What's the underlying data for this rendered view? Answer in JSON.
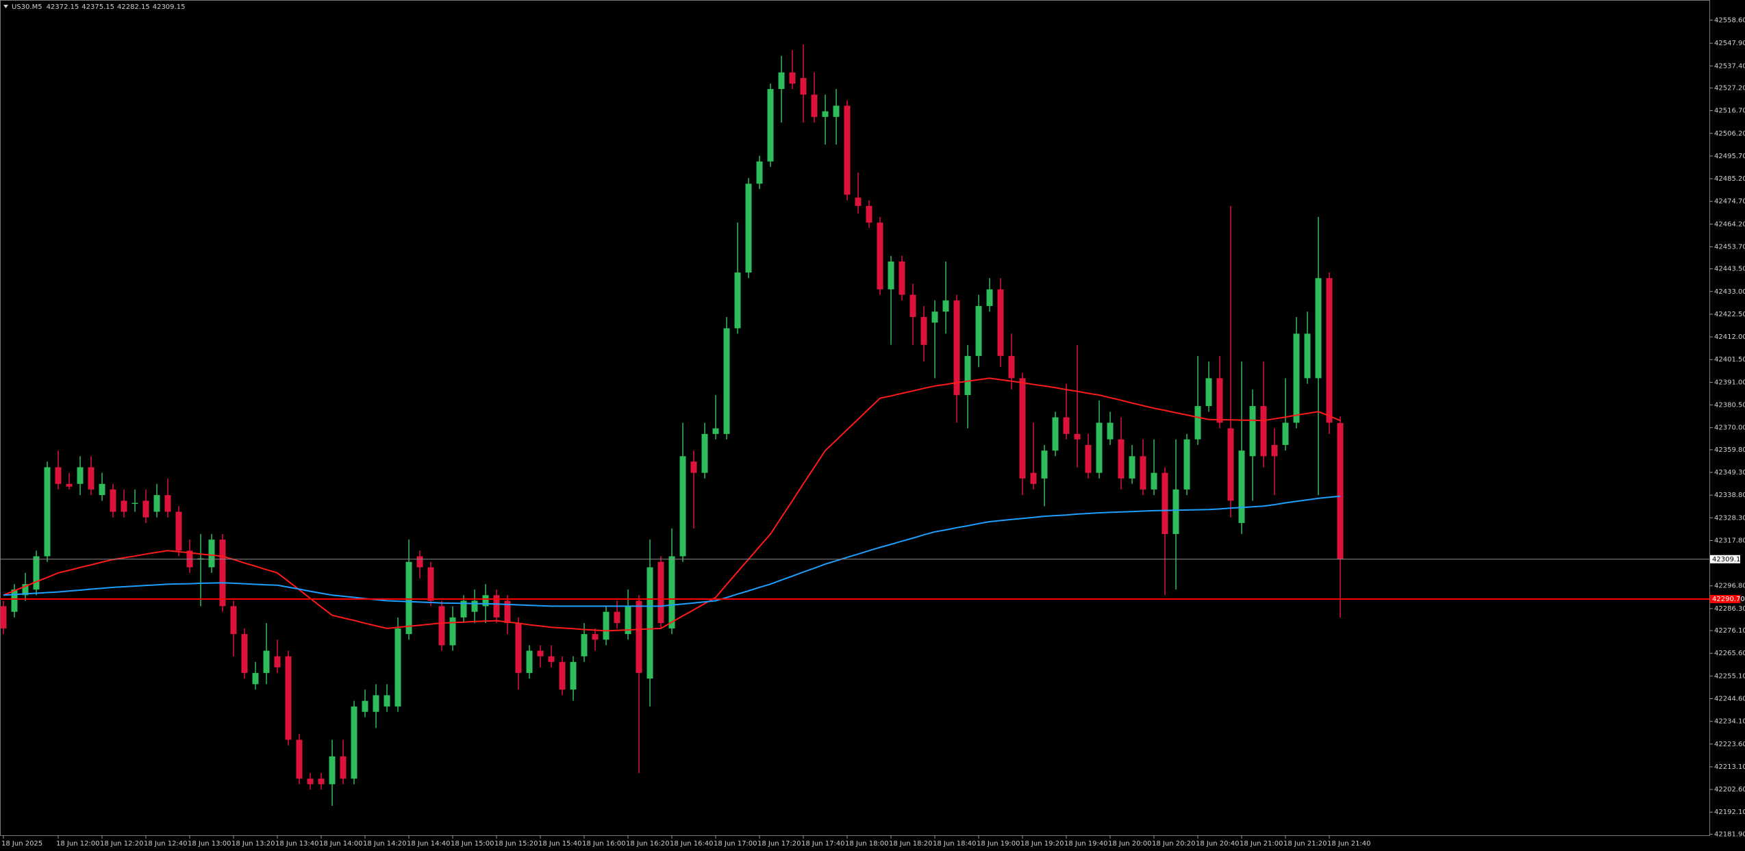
{
  "chart_data": {
    "type": "candlestick",
    "symbol": "US30.M5",
    "categories": [
      "18 Jun 2025",
      null,
      null,
      null,
      null,
      "18 Jun 12:00",
      null,
      null,
      null,
      "18 Jun 12:20",
      null,
      null,
      null,
      "18 Jun 12:40",
      null,
      null,
      null,
      "18 Jun 13:00",
      null,
      null,
      null,
      "18 Jun 13:20",
      null,
      null,
      null,
      "18 Jun 13:40",
      null,
      null,
      null,
      "18 Jun 14:00",
      null,
      null,
      null,
      "18 Jun 14:20",
      null,
      null,
      null,
      "18 Jun 14:40",
      null,
      null,
      null,
      "18 Jun 15:00",
      null,
      null,
      null,
      "18 Jun 15:20",
      null,
      null,
      null,
      "18 Jun 15:40",
      null,
      null,
      null,
      "18 Jun 16:00",
      null,
      null,
      null,
      "18 Jun 16:20",
      null,
      null,
      null,
      "18 Jun 16:40",
      null,
      null,
      null,
      "18 Jun 17:00",
      null,
      null,
      null,
      "18 Jun 17:20",
      null,
      null,
      null,
      "18 Jun 17:40",
      null,
      null,
      null,
      "18 Jun 18:00",
      null,
      null,
      null,
      "18 Jun 18:20",
      null,
      null,
      null,
      "18 Jun 18:40",
      null,
      null,
      null,
      "18 Jun 19:00",
      null,
      null,
      null,
      "18 Jun 19:20",
      null,
      null,
      null,
      "18 Jun 19:40",
      null,
      null,
      null,
      "18 Jun 20:00",
      null,
      null,
      null,
      "18 Jun 20:20",
      null,
      null,
      null,
      "18 Jun 20:40",
      null,
      null,
      null,
      "18 Jun 21:00",
      null,
      null,
      null,
      "18 Jun 21:20",
      null,
      null,
      null,
      "18 Jun 21:40",
      null
    ],
    "open": [
      42287.4,
      42284.8,
      42292.5,
      42295.1,
      42310.5,
      42351.7,
      42344.0,
      42344.0,
      42351.7,
      42338.8,
      42341.4,
      42336.2,
      42335.0,
      42336.2,
      42331.1,
      42338.8,
      42331.1,
      42313.1,
      42309.0,
      42305.4,
      42318.2,
      42287.4,
      42274.5,
      42251.3,
      42256.5,
      42264.2,
      42264.2,
      42225.6,
      42207.6,
      42207.6,
      42205.0,
      42217.9,
      42207.6,
      42238.5,
      42238.5,
      42241.0,
      42241.0,
      42274.5,
      42310.5,
      42305.4,
      42287.4,
      42269.3,
      42282.2,
      42284.8,
      42287.4,
      42292.5,
      42289.9,
      42279.6,
      42256.5,
      42266.8,
      42264.2,
      42261.6,
      42248.8,
      42264.2,
      42274.5,
      42271.9,
      42284.8,
      42274.5,
      42289.9,
      42253.9,
      42307.9,
      42277.1,
      42310.5,
      42354.3,
      42349.1,
      42367.1,
      42367.1,
      42416.0,
      42441.8,
      42482.9,
      42493.2,
      42526.7,
      42534.4,
      42531.8,
      42524.1,
      42513.8,
      42513.8,
      42519.0,
      42476.5,
      42472.6,
      42464.9,
      42434.0,
      42446.9,
      42431.5,
      42421.2,
      42418.6,
      42423.7,
      42428.9,
      42385.1,
      42403.2,
      42426.3,
      42434.0,
      42403.2,
      42392.9,
      42349.1,
      42346.5,
      42359.4,
      42374.8,
      42367.1,
      42362.0,
      42349.1,
      42364.6,
      42364.6,
      42346.5,
      42356.8,
      42341.4,
      42349.1,
      42320.8,
      42341.4,
      42364.6,
      42380.0,
      42392.9,
      42369.7,
      42325.9,
      42356.8,
      42380.0,
      42362.0,
      42362.0,
      42372.3,
      42392.9,
      42392.9,
      42439.2,
      42372.15
    ],
    "high": [
      42289.9,
      42297.6,
      42302.8,
      42313.1,
      42354.3,
      42359.4,
      42349.1,
      42356.8,
      42356.8,
      42349.1,
      42344.0,
      42341.4,
      42341.4,
      42341.4,
      42344.0,
      42346.5,
      42333.7,
      42318.2,
      42320.8,
      42320.8,
      42320.8,
      42289.9,
      42277.1,
      42261.6,
      42279.6,
      42271.9,
      42266.8,
      42228.2,
      42210.2,
      42210.2,
      42225.6,
      42225.6,
      42243.6,
      42248.8,
      42251.3,
      42251.3,
      42282.2,
      42318.2,
      42313.1,
      42307.9,
      42289.9,
      42287.4,
      42292.5,
      42295.1,
      42297.6,
      42295.1,
      42292.5,
      42282.2,
      42269.3,
      42269.3,
      42269.3,
      42264.2,
      42264.2,
      42279.6,
      42277.1,
      42287.4,
      42289.9,
      42295.1,
      42292.5,
      42318.2,
      42310.5,
      42323.4,
      42372.3,
      42359.4,
      42372.3,
      42385.1,
      42421.2,
      42464.9,
      42485.5,
      42495.8,
      42529.2,
      42542.1,
      42544.7,
      42547.3,
      42534.4,
      42524.1,
      42526.7,
      42521.5,
      42488.1,
      42475.2,
      42467.5,
      42449.5,
      42449.5,
      42436.6,
      42426.3,
      42428.9,
      42446.9,
      42431.5,
      42408.3,
      42431.5,
      42439.2,
      42439.2,
      42413.5,
      42395.4,
      42372.3,
      42362.0,
      42377.4,
      42390.3,
      42408.3,
      42367.1,
      42382.6,
      42377.4,
      42374.8,
      42362.0,
      42364.6,
      42364.6,
      42351.7,
      42364.6,
      42367.1,
      42403.2,
      42400.6,
      42403.2,
      42472.6,
      42400.6,
      42387.7,
      42400.6,
      42369.7,
      42392.9,
      42421.2,
      42423.7,
      42467.5,
      42441.8,
      42375.15
    ],
    "low": [
      42274.5,
      42282.2,
      42289.9,
      42292.5,
      42307.9,
      42341.4,
      42341.4,
      42338.8,
      42338.8,
      42336.2,
      42328.5,
      42328.5,
      42331.1,
      42325.9,
      42328.5,
      42328.5,
      42310.5,
      42302.8,
      42287.4,
      42302.8,
      42284.8,
      42264.2,
      42253.9,
      42248.8,
      42251.3,
      42256.5,
      42223.0,
      42205.0,
      42202.5,
      42202.5,
      42195.0,
      42205.0,
      42205.0,
      42236.0,
      42231.0,
      42238.5,
      42238.5,
      42271.9,
      42300.2,
      42287.4,
      42266.8,
      42266.8,
      42279.6,
      42279.6,
      42279.6,
      42279.6,
      42274.5,
      42248.8,
      42253.9,
      42259.1,
      42259.1,
      42246.2,
      42243.6,
      42261.6,
      42266.8,
      42269.3,
      42277.1,
      42271.9,
      42210.2,
      42241.0,
      42277.1,
      42274.5,
      42307.9,
      42323.4,
      42346.5,
      42364.6,
      42364.6,
      42413.5,
      42439.2,
      42480.4,
      42490.7,
      42511.2,
      42526.7,
      42511.2,
      42511.2,
      42501.0,
      42501.0,
      42475.2,
      42469.1,
      42462.4,
      42431.5,
      42408.3,
      42428.9,
      42408.3,
      42400.6,
      42392.9,
      42413.5,
      42372.3,
      42369.7,
      42398.0,
      42423.7,
      42398.0,
      42387.7,
      42338.8,
      42341.4,
      42333.7,
      42356.8,
      42364.6,
      42351.7,
      42346.5,
      42346.5,
      42362.0,
      42341.4,
      42344.0,
      42338.8,
      42338.8,
      42292.5,
      42295.1,
      42338.8,
      42362.0,
      42377.4,
      42369.7,
      42328.5,
      42320.8,
      42336.2,
      42351.7,
      42338.8,
      42359.4,
      42369.7,
      42390.3,
      42338.8,
      42367.1,
      42282.15
    ],
    "close": [
      42277.1,
      42295.1,
      42297.6,
      42310.5,
      42351.7,
      42344.0,
      42342.7,
      42351.7,
      42341.4,
      42344.0,
      42331.1,
      42331.1,
      42335.2,
      42328.5,
      42338.8,
      42331.1,
      42313.1,
      42305.4,
      42309.5,
      42318.2,
      42287.4,
      42274.5,
      42256.5,
      42256.5,
      42266.8,
      42259.1,
      42225.6,
      42207.6,
      42205.0,
      42205.0,
      42217.9,
      42207.6,
      42241.0,
      42243.6,
      42246.2,
      42246.2,
      42277.1,
      42307.9,
      42305.4,
      42289.9,
      42269.3,
      42282.2,
      42289.9,
      42289.9,
      42292.5,
      42282.2,
      42279.6,
      42256.5,
      42266.8,
      42264.2,
      42261.6,
      42248.8,
      42261.6,
      42274.5,
      42271.9,
      42284.8,
      42279.6,
      42287.4,
      42256.5,
      42305.4,
      42279.6,
      42310.5,
      42356.8,
      42349.1,
      42367.1,
      42369.7,
      42416.0,
      42441.8,
      42482.9,
      42493.2,
      42526.7,
      42534.4,
      42529.2,
      42524.1,
      42513.8,
      42516.4,
      42519.0,
      42477.8,
      42472.6,
      42464.9,
      42434.0,
      42446.9,
      42431.5,
      42421.2,
      42408.3,
      42423.7,
      42428.9,
      42385.1,
      42403.2,
      42426.3,
      42434.0,
      42403.2,
      42392.9,
      42346.5,
      42344.0,
      42359.4,
      42374.8,
      42367.1,
      42364.6,
      42349.1,
      42372.3,
      42372.3,
      42346.5,
      42356.8,
      42341.4,
      42349.1,
      42320.8,
      42341.4,
      42364.6,
      42380.0,
      42392.9,
      42372.3,
      42336.2,
      42359.4,
      42380.0,
      42356.8,
      42356.8,
      42372.3,
      42413.5,
      42413.5,
      42439.2,
      42372.3,
      42309.15
    ],
    "up_color": "#2ebd5c",
    "down_color": "#dc143c",
    "lines": [
      {
        "color": "#ff1a1a",
        "values": [
          42292.5,
          42294.6,
          42296.6,
          42298.7,
          42300.7,
          42302.8,
          42304.0,
          42305.3,
          42306.5,
          42307.8,
          42309.0,
          42309.8,
          42310.6,
          42311.5,
          42312.3,
          42313.1,
          42312.6,
          42312.1,
          42311.5,
          42311.0,
          42310.5,
          42309.0,
          42307.4,
          42305.9,
          42304.3,
          42302.8,
          42298.9,
          42295.0,
          42291.0,
          42287.1,
          42283.2,
          42282.0,
          42280.8,
          42279.5,
          42278.3,
          42277.1,
          42277.6,
          42278.1,
          42278.6,
          42279.1,
          42279.6,
          42279.8,
          42280.0,
          42280.3,
          42280.5,
          42280.7,
          42280.1,
          42279.5,
          42278.8,
          42278.2,
          42277.6,
          42277.3,
          42277.0,
          42276.6,
          42276.3,
          42276.0,
          42276.2,
          42276.4,
          42276.7,
          42276.9,
          42277.1,
          42280.0,
          42282.9,
          42285.7,
          42288.6,
          42291.5,
          42297.4,
          42303.3,
          42309.1,
          42315.0,
          42320.8,
          42328.5,
          42336.2,
          42344.0,
          42351.7,
          42359.4,
          42364.2,
          42369.1,
          42373.9,
          42378.8,
          42383.6,
          42384.7,
          42385.9,
          42387.0,
          42388.2,
          42389.3,
          42390.0,
          42390.8,
          42391.5,
          42392.2,
          42392.9,
          42392.2,
          42391.5,
          42390.8,
          42390.0,
          42389.3,
          42388.5,
          42387.6,
          42386.8,
          42385.9,
          42385.1,
          42383.9,
          42382.7,
          42381.4,
          42380.2,
          42379.0,
          42378.0,
          42376.9,
          42375.9,
          42374.8,
          42373.8,
          42373.7,
          42373.6,
          42373.5,
          42373.4,
          42373.3,
          42374.1,
          42374.9,
          42375.8,
          42376.6,
          42377.4,
          42375.4,
          42373.3
        ]
      },
      {
        "color": "#1e9fff",
        "values": [
          42292.5,
          42292.8,
          42293.1,
          42293.4,
          42293.7,
          42294.0,
          42294.4,
          42294.8,
          42295.3,
          42295.7,
          42296.1,
          42296.4,
          42296.7,
          42297.0,
          42297.3,
          42297.6,
          42297.7,
          42297.8,
          42298.0,
          42298.1,
          42298.2,
          42298.0,
          42297.8,
          42297.5,
          42297.3,
          42297.1,
          42296.2,
          42295.3,
          42294.3,
          42293.4,
          42292.5,
          42292.0,
          42291.5,
          42290.9,
          42290.4,
          42289.9,
          42289.7,
          42289.5,
          42289.3,
          42289.1,
          42288.9,
          42288.8,
          42288.7,
          42288.6,
          42288.5,
          42288.4,
          42288.2,
          42288.0,
          42287.8,
          42287.6,
          42287.4,
          42287.4,
          42287.4,
          42287.4,
          42287.4,
          42287.4,
          42287.4,
          42287.4,
          42287.4,
          42287.4,
          42287.4,
          42287.9,
          42288.4,
          42288.9,
          42289.4,
          42289.9,
          42291.4,
          42293.0,
          42294.5,
          42296.1,
          42297.6,
          42299.5,
          42301.3,
          42303.2,
          42305.0,
          42306.9,
          42308.4,
          42310.0,
          42311.5,
          42313.1,
          42314.6,
          42316.0,
          42317.5,
          42318.9,
          42320.4,
          42321.8,
          42322.7,
          42323.7,
          42324.6,
          42325.6,
          42326.5,
          42327.0,
          42327.5,
          42328.0,
          42328.5,
          42329.0,
          42329.3,
          42329.6,
          42330.0,
          42330.3,
          42330.6,
          42330.8,
          42331.0,
          42331.2,
          42331.4,
          42331.6,
          42331.7,
          42331.8,
          42331.9,
          42332.0,
          42332.1,
          42332.4,
          42332.8,
          42333.1,
          42333.4,
          42333.7,
          42334.4,
          42335.2,
          42335.9,
          42336.6,
          42337.3,
          42337.8,
          42338.3
        ]
      }
    ],
    "price_lines": [
      {
        "value": 42309.15,
        "label": "42309.15",
        "color": "#8c8c8c",
        "box": "#ffffff",
        "text_color": "#000000"
      },
      {
        "value": 42290.7,
        "label": "42290.70",
        "color": "#ff0000",
        "box": "#ff0000",
        "text_color": "#ffffff"
      }
    ],
    "ylim": [
      42181.4,
      42567.9
    ],
    "yticks": [
      {
        "value": 42558.6,
        "label": "42558.60"
      },
      {
        "value": 42547.9,
        "label": "42547.90"
      },
      {
        "value": 42537.4,
        "label": "42537.40"
      },
      {
        "value": 42527.2,
        "label": "42527.20"
      },
      {
        "value": 42516.7,
        "label": "42516.70"
      },
      {
        "value": 42506.2,
        "label": "42506.20"
      },
      {
        "value": 42495.7,
        "label": "42495.70"
      },
      {
        "value": 42485.2,
        "label": "42485.20"
      },
      {
        "value": 42474.7,
        "label": "42474.70"
      },
      {
        "value": 42464.2,
        "label": "42464.20"
      },
      {
        "value": 42453.7,
        "label": "42453.70"
      },
      {
        "value": 42443.5,
        "label": "42443.50"
      },
      {
        "value": 42433,
        "label": "42433.00"
      },
      {
        "value": 42422.5,
        "label": "42422.50"
      },
      {
        "value": 42412,
        "label": "42412.00"
      },
      {
        "value": 42401.5,
        "label": "42401.50"
      },
      {
        "value": 42391,
        "label": "42391.00"
      },
      {
        "value": 42380.5,
        "label": "42380.50"
      },
      {
        "value": 42370,
        "label": "42370.00"
      },
      {
        "value": 42359.8,
        "label": "42359.80"
      },
      {
        "value": 42349.3,
        "label": "42349.30"
      },
      {
        "value": 42338.8,
        "label": "42338.80"
      },
      {
        "value": 42328.3,
        "label": "42328.30"
      },
      {
        "value": 42317.8,
        "label": "42317.80"
      },
      {
        "value": 42296.8,
        "label": "42296.80"
      },
      {
        "value": 42286.3,
        "label": "42286.30"
      },
      {
        "value": 42276.1,
        "label": "42276.10"
      },
      {
        "value": 42265.6,
        "label": "42265.60"
      },
      {
        "value": 42255.1,
        "label": "42255.10"
      },
      {
        "value": 42244.6,
        "label": "42244.60"
      },
      {
        "value": 42234.1,
        "label": "42234.10"
      },
      {
        "value": 42223.6,
        "label": "42223.60"
      },
      {
        "value": 42213.1,
        "label": "42213.10"
      },
      {
        "value": 42202.6,
        "label": "42202.60"
      },
      {
        "value": 42192.1,
        "label": "42192.10"
      },
      {
        "value": 42181.9,
        "label": "42181.90"
      }
    ],
    "grid": false
  }
}
